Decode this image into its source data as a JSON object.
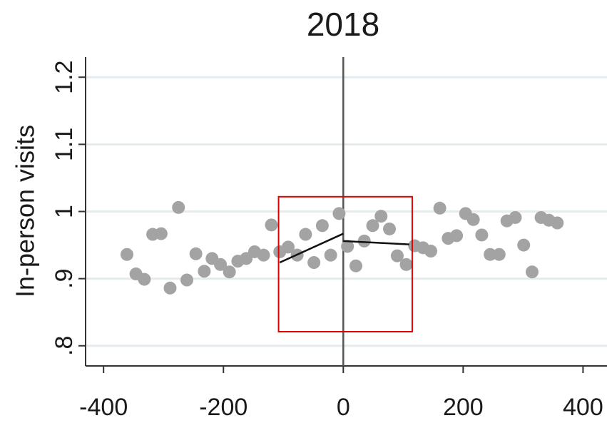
{
  "chart_data": {
    "type": "scatter",
    "title": "2018",
    "y_label": "In-person visits",
    "x": [
      -361,
      -346,
      -332,
      -318,
      -304,
      -289,
      -275,
      -261,
      -246,
      -232,
      -219,
      -205,
      -190,
      -176,
      -162,
      -148,
      -133,
      -120,
      -106,
      -92,
      -77,
      -63,
      -49,
      -35,
      -21,
      -7,
      7,
      21,
      35,
      49,
      63,
      77,
      90,
      105,
      119,
      133,
      146,
      161,
      175,
      189,
      204,
      217,
      231,
      245,
      260,
      273,
      287,
      301,
      315,
      330,
      343,
      357
    ],
    "values": [
      0.936,
      0.907,
      0.899,
      0.966,
      0.967,
      0.886,
      1.006,
      0.898,
      0.937,
      0.911,
      0.93,
      0.921,
      0.91,
      0.926,
      0.93,
      0.94,
      0.935,
      0.98,
      0.94,
      0.947,
      0.935,
      0.966,
      0.924,
      0.979,
      0.935,
      0.997,
      0.948,
      0.919,
      0.956,
      0.979,
      0.993,
      0.974,
      0.934,
      0.921,
      0.949,
      0.946,
      0.941,
      1.005,
      0.96,
      0.964,
      0.997,
      0.988,
      0.965,
      0.936,
      0.936,
      0.986,
      0.991,
      0.95,
      0.91,
      0.991,
      0.987,
      0.983
    ],
    "color": "#a3a3a3",
    "fit_lines": [
      {
        "x": [
          -106,
          0
        ],
        "values": [
          0.924,
          0.967
        ],
        "color": "#111111"
      },
      {
        "x": [
          0,
          110
        ],
        "values": [
          0.956,
          0.951
        ],
        "color": "#111111"
      }
    ],
    "vline": 0,
    "highlight_box": {
      "xlim": [
        -108,
        115
      ],
      "ylim": [
        0.821,
        1.022
      ],
      "color": "#e00000"
    },
    "xlim": [
      -430,
      440
    ],
    "ylim": [
      0.77,
      1.23
    ],
    "xticks": [
      -400,
      -200,
      0,
      200,
      400
    ],
    "yticks": [
      {
        "value": 0.8,
        "label": ".8"
      },
      {
        "value": 0.9,
        "label": ".9"
      },
      1,
      1.1,
      1.2
    ],
    "grid": true,
    "grid_color": "#e3ecf0"
  }
}
